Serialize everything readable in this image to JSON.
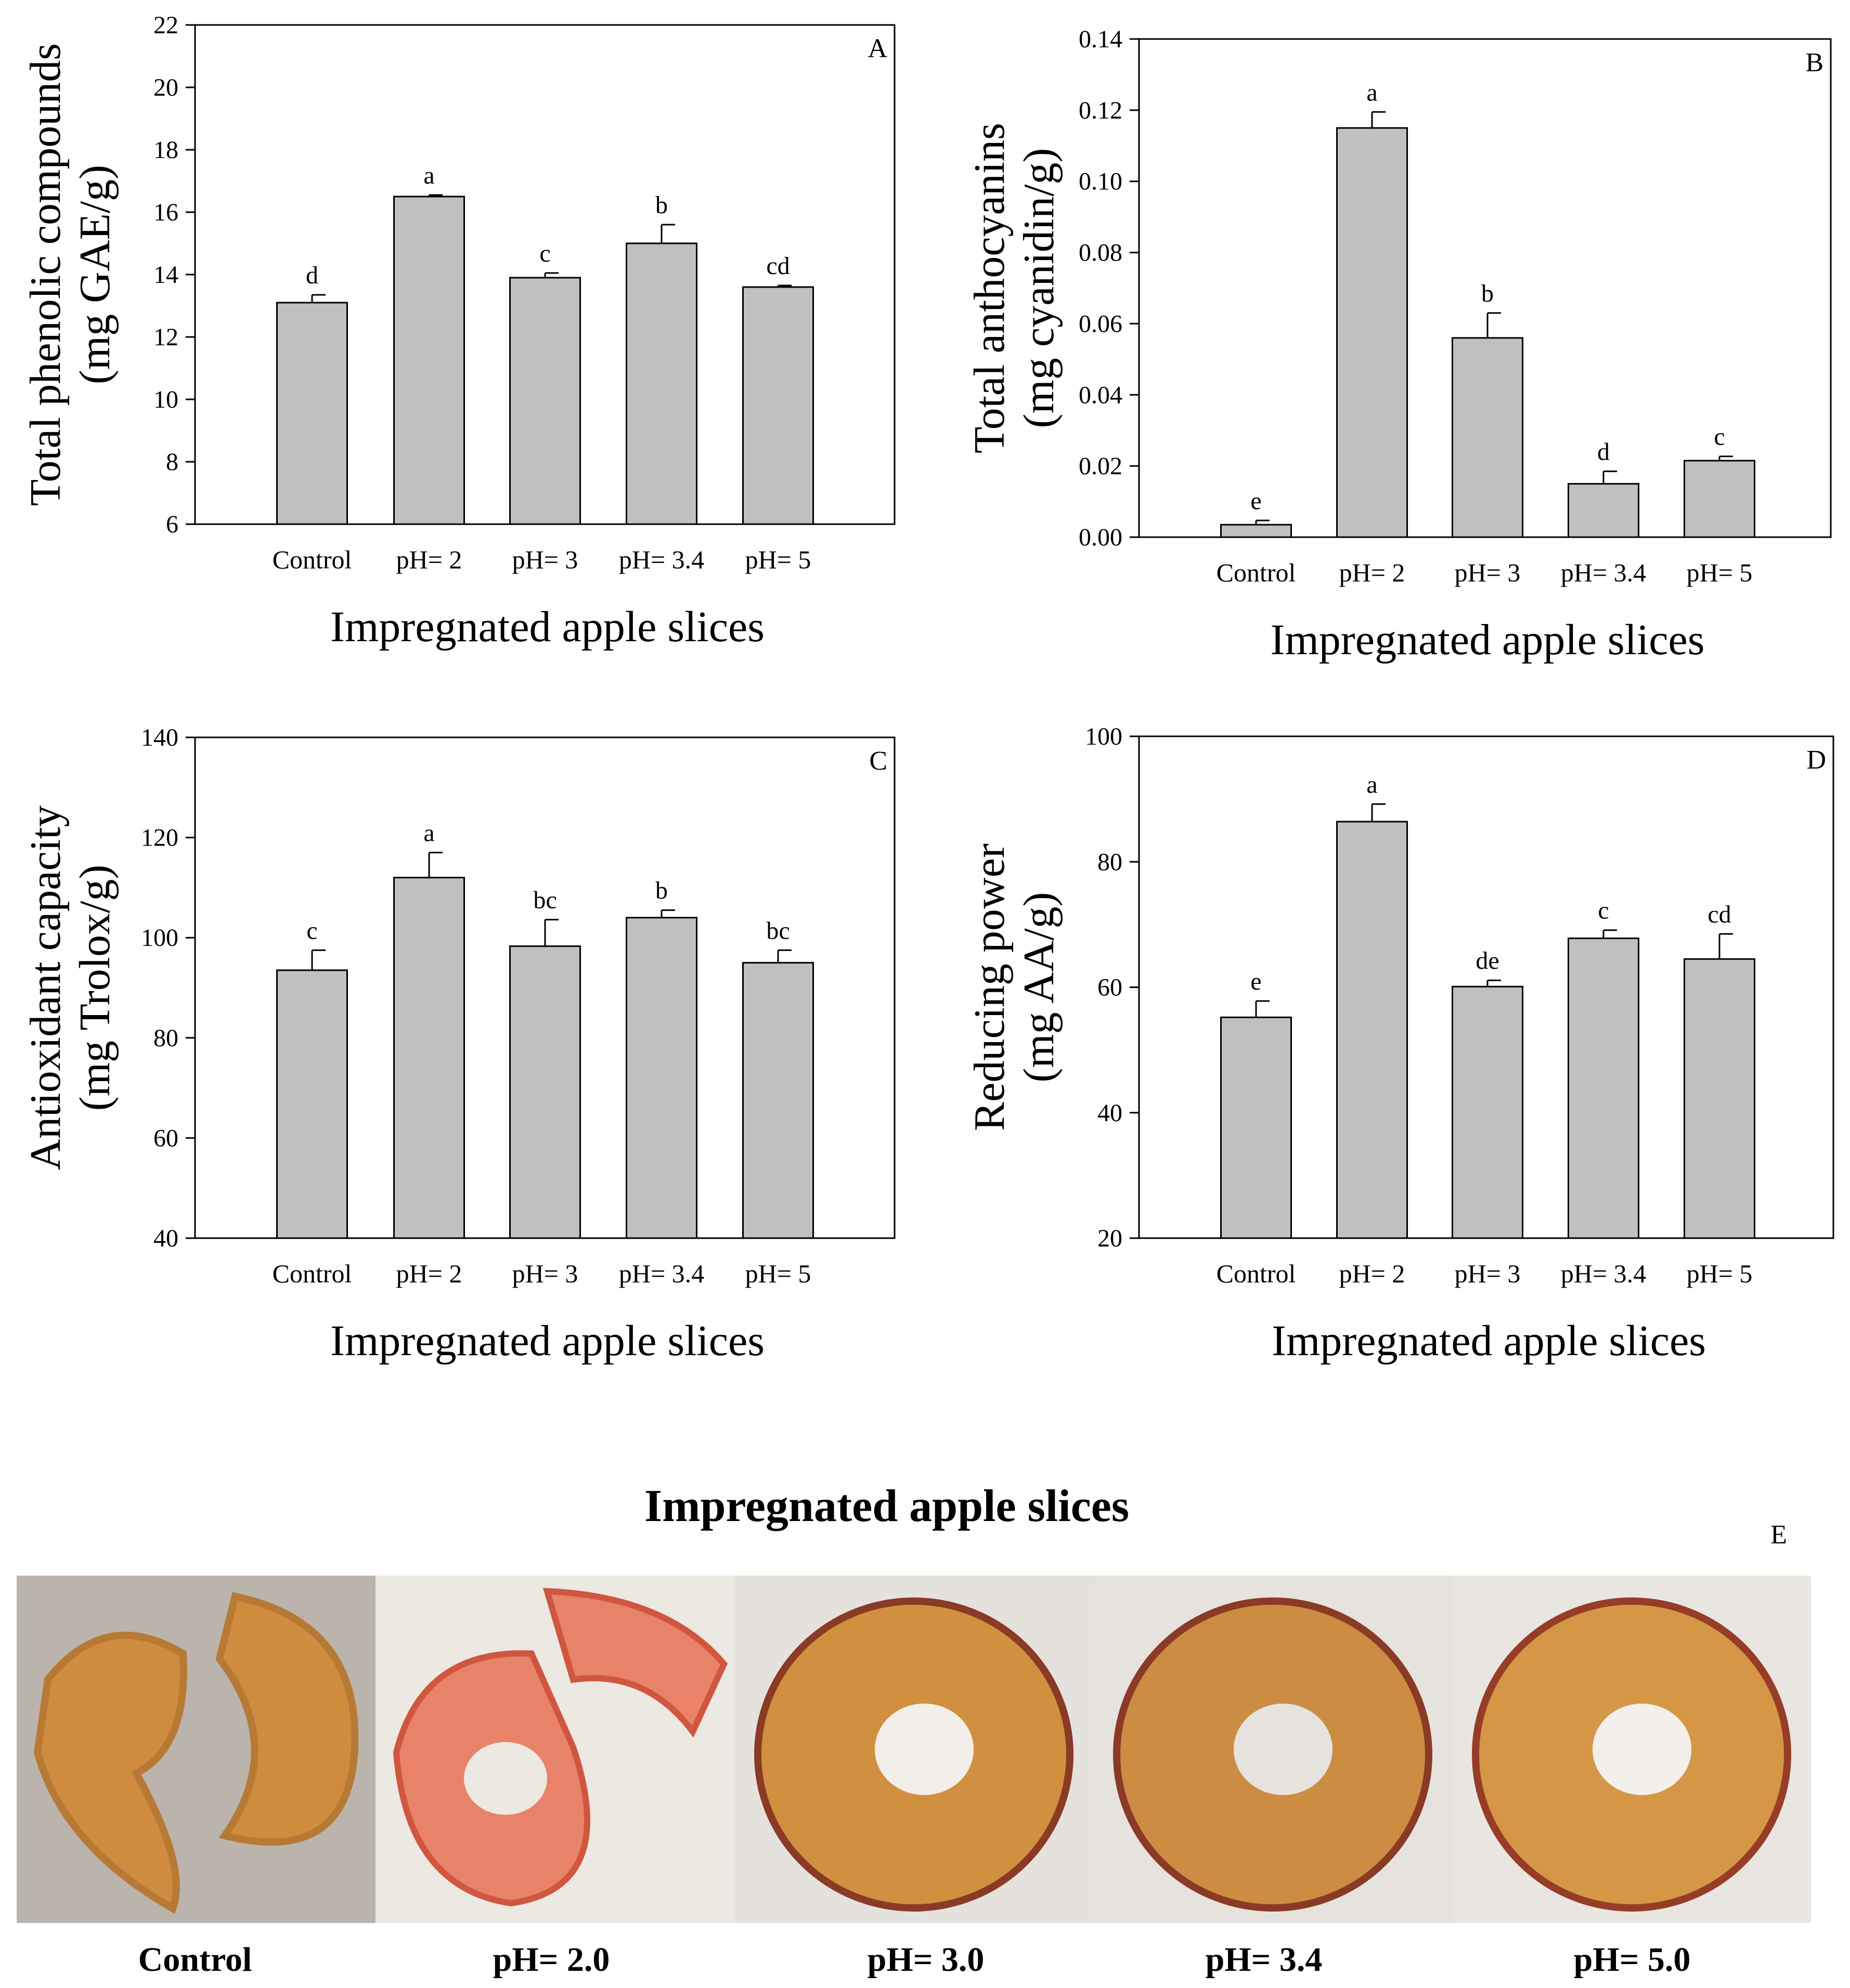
{
  "chart_data": [
    {
      "type": "bar",
      "panel": "A",
      "categories": [
        "Control",
        "pH= 2",
        "pH= 3",
        "pH= 3.4",
        "pH= 5"
      ],
      "values": [
        13.1,
        16.5,
        13.9,
        15.0,
        13.6
      ],
      "errors": [
        0.25,
        0.05,
        0.15,
        0.6,
        0.05
      ],
      "significance": [
        "d",
        "a",
        "c",
        "b",
        "cd"
      ],
      "ylabel": [
        "Total phenolic compounds",
        "(mg GAE/g)"
      ],
      "xlabel": "Impregnated apple slices",
      "ylim": [
        6,
        22
      ],
      "yticks": [
        6,
        8,
        10,
        12,
        14,
        16,
        18,
        20,
        22
      ],
      "ytick_labels": [
        "6",
        "8",
        "10",
        "12",
        "14",
        "16",
        "18",
        "20",
        "22"
      ]
    },
    {
      "type": "bar",
      "panel": "B",
      "categories": [
        "Control",
        "pH= 2",
        "pH= 3",
        "pH= 3.4",
        "pH= 5"
      ],
      "values": [
        0.0035,
        0.115,
        0.056,
        0.015,
        0.0215
      ],
      "errors": [
        0.0012,
        0.0045,
        0.007,
        0.0035,
        0.0012
      ],
      "significance": [
        "e",
        "a",
        "b",
        "d",
        "c"
      ],
      "ylabel": [
        "Total anthocyanins",
        "(mg cyanidin/g)"
      ],
      "xlabel": "Impregnated apple slices",
      "ylim": [
        0,
        0.14
      ],
      "yticks": [
        0,
        0.02,
        0.04,
        0.06,
        0.08,
        0.1,
        0.12,
        0.14
      ],
      "ytick_labels": [
        "0.00",
        "0.02",
        "0.04",
        "0.06",
        "0.08",
        "0.10",
        "0.12",
        "0.14"
      ]
    },
    {
      "type": "bar",
      "panel": "C",
      "categories": [
        "Control",
        "pH= 2",
        "pH= 3",
        "pH= 3.4",
        "pH= 5"
      ],
      "values": [
        93.5,
        112,
        98.3,
        104,
        95
      ],
      "errors": [
        4,
        5,
        5.3,
        1.5,
        2.5
      ],
      "significance": [
        "c",
        "a",
        "bc",
        "b",
        "bc"
      ],
      "ylabel": [
        "Antioxidant capacity",
        "(mg Trolox/g)"
      ],
      "xlabel": "Impregnated apple slices",
      "ylim": [
        40,
        140
      ],
      "yticks": [
        40,
        60,
        80,
        100,
        120,
        140
      ],
      "ytick_labels": [
        "40",
        "60",
        "80",
        "100",
        "120",
        "140"
      ]
    },
    {
      "type": "bar",
      "panel": "D",
      "categories": [
        "Control",
        "pH= 2",
        "pH= 3",
        "pH= 3.4",
        "pH= 5"
      ],
      "values": [
        55.2,
        86.4,
        60.1,
        67.8,
        64.5
      ],
      "errors": [
        2.6,
        2.8,
        1.0,
        1.3,
        4.0
      ],
      "significance": [
        "e",
        "a",
        "de",
        "c",
        "cd"
      ],
      "ylabel": [
        "Reducing power",
        "(mg AA/g)"
      ],
      "xlabel": "Impregnated apple slices",
      "ylim": [
        20,
        100
      ],
      "yticks": [
        20,
        40,
        60,
        80,
        100
      ],
      "ytick_labels": [
        "20",
        "40",
        "60",
        "80",
        "100"
      ]
    }
  ],
  "photos": {
    "title": "Impregnated apple slices",
    "panel_label": "E",
    "items": [
      {
        "label": "Control",
        "background": "#bab4ac",
        "flesh": "#cf8c3f",
        "skin": "#b77a35",
        "hole": "#bab4ac"
      },
      {
        "label": "pH= 2.0",
        "background": "#ece8e2",
        "flesh": "#e8836a",
        "skin": "#d0563f",
        "hole": "#ece8e2"
      },
      {
        "label": "pH= 3.0",
        "background": "#e5e2dd",
        "flesh": "#d1903f",
        "skin": "#8a3a25",
        "hole": "#f2efea"
      },
      {
        "label": "pH= 3.4",
        "background": "#e6e3de",
        "flesh": "#cc8c42",
        "skin": "#8a3a25",
        "hole": "#e6e3de"
      },
      {
        "label": "pH= 5.0",
        "background": "#e9e6e1",
        "flesh": "#d59646",
        "skin": "#963c27",
        "hole": "#f3f0eb"
      }
    ]
  },
  "colors": {
    "bar_fill": "#c0c0c0",
    "stroke": "#000000",
    "background": "#ffffff"
  }
}
